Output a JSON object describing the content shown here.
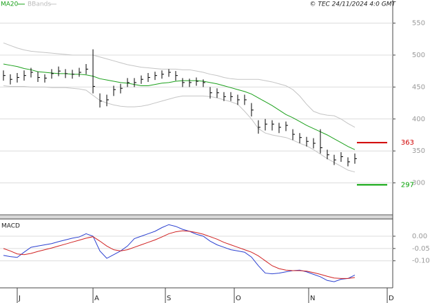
{
  "chart_data": [
    {
      "type": "ohlc",
      "copyright": "© TEC 24/11/2024 4:0 GMT",
      "bars": {
        "color": "#000000",
        "high": [
          476,
          470,
          472,
          476,
          480,
          474,
          470,
          478,
          482,
          478,
          477,
          480,
          486,
          509,
          440,
          438,
          452,
          455,
          464,
          464,
          468,
          472,
          474,
          476,
          478,
          475,
          464,
          463,
          465,
          462,
          450,
          448,
          442,
          442,
          438,
          438,
          425,
          398,
          400,
          398,
          394,
          396,
          384,
          378,
          372,
          370,
          384,
          352,
          344,
          348,
          340,
          346
        ],
        "low": [
          460,
          454,
          457,
          460,
          465,
          458,
          457,
          463,
          467,
          464,
          463,
          466,
          470,
          440,
          418,
          420,
          436,
          440,
          450,
          450,
          455,
          458,
          461,
          463,
          466,
          460,
          450,
          450,
          452,
          450,
          432,
          433,
          428,
          428,
          422,
          422,
          404,
          377,
          382,
          382,
          378,
          381,
          367,
          362,
          357,
          354,
          346,
          337,
          328,
          333,
          326,
          330
        ],
        "close": [
          468,
          462,
          465,
          468,
          473,
          465,
          464,
          471,
          475,
          471,
          470,
          473,
          478,
          451,
          428,
          430,
          446,
          448,
          457,
          457,
          462,
          465,
          468,
          470,
          473,
          468,
          457,
          457,
          459,
          457,
          441,
          441,
          435,
          435,
          430,
          430,
          414,
          387,
          392,
          392,
          387,
          390,
          376,
          371,
          365,
          362,
          355,
          344,
          336,
          341,
          333,
          338
        ]
      },
      "series": [
        {
          "name": "MA20",
          "color": "#1aa01a",
          "values": [
            486,
            484,
            482,
            479,
            477,
            474,
            473,
            472,
            471,
            471,
            470,
            470,
            469,
            467,
            463,
            461,
            459,
            457,
            456,
            454,
            452,
            452,
            454,
            456,
            457,
            459,
            460,
            460,
            460,
            459,
            457,
            455,
            452,
            449,
            446,
            443,
            439,
            433,
            427,
            421,
            414,
            407,
            402,
            396,
            390,
            385,
            380,
            375,
            369,
            363,
            357,
            352
          ]
        },
        {
          "name": "BBands",
          "color": "#c4c4c4",
          "upper": [
            519,
            515,
            511,
            508,
            506,
            505,
            504,
            503,
            502,
            501,
            500,
            500,
            500,
            500,
            497,
            494,
            491,
            488,
            485,
            483,
            481,
            480,
            479,
            478,
            478,
            478,
            477,
            477,
            475,
            473,
            470,
            468,
            465,
            463,
            462,
            462,
            462,
            462,
            460,
            458,
            455,
            452,
            446,
            436,
            423,
            412,
            408,
            406,
            405,
            400,
            393,
            387
          ],
          "lower": [
            452,
            451,
            451,
            451,
            450,
            450,
            450,
            449,
            449,
            449,
            448,
            447,
            445,
            437,
            429,
            425,
            422,
            420,
            419,
            419,
            420,
            422,
            425,
            428,
            431,
            434,
            436,
            436,
            436,
            436,
            435,
            433,
            430,
            427,
            423,
            412,
            400,
            385,
            378,
            375,
            373,
            371,
            367,
            362,
            358,
            352,
            345,
            338,
            332,
            326,
            320,
            317
          ]
        }
      ],
      "levels": [
        {
          "value": 363,
          "color": "#d00000"
        },
        {
          "value": 297,
          "color": "#00a000"
        }
      ],
      "xlim": [
        -0.5,
        56.5
      ],
      "ylim": [
        250,
        570
      ],
      "yticks": [
        300,
        350,
        400,
        450,
        500,
        550
      ],
      "grid": true
    },
    {
      "type": "line",
      "title": "MACD",
      "series": [
        {
          "color": "#2a3fd0",
          "values": [
            -0.078,
            -0.083,
            -0.086,
            -0.065,
            -0.045,
            -0.04,
            -0.035,
            -0.03,
            -0.022,
            -0.015,
            -0.008,
            -0.003,
            0.01,
            0.0,
            -0.06,
            -0.09,
            -0.075,
            -0.06,
            -0.04,
            -0.01,
            0.0,
            0.01,
            0.02,
            0.035,
            0.047,
            0.04,
            0.028,
            0.02,
            0.008,
            0.0,
            -0.02,
            -0.035,
            -0.045,
            -0.055,
            -0.06,
            -0.065,
            -0.085,
            -0.12,
            -0.15,
            -0.153,
            -0.15,
            -0.145,
            -0.14,
            -0.138,
            -0.145,
            -0.155,
            -0.165,
            -0.18,
            -0.185,
            -0.175,
            -0.172,
            -0.158
          ]
        },
        {
          "color": "#d02020",
          "values": [
            -0.05,
            -0.06,
            -0.072,
            -0.075,
            -0.07,
            -0.062,
            -0.055,
            -0.048,
            -0.04,
            -0.032,
            -0.024,
            -0.016,
            -0.008,
            -0.002,
            -0.02,
            -0.04,
            -0.055,
            -0.06,
            -0.055,
            -0.045,
            -0.035,
            -0.025,
            -0.015,
            -0.003,
            0.01,
            0.018,
            0.022,
            0.02,
            0.015,
            0.008,
            -0.002,
            -0.012,
            -0.025,
            -0.035,
            -0.045,
            -0.055,
            -0.065,
            -0.08,
            -0.1,
            -0.12,
            -0.132,
            -0.138,
            -0.14,
            -0.14,
            -0.142,
            -0.148,
            -0.155,
            -0.163,
            -0.17,
            -0.172,
            -0.172,
            -0.168
          ]
        }
      ],
      "xlim": [
        -0.5,
        56.5
      ],
      "xticks": [
        {
          "value": 2,
          "label": "J"
        },
        {
          "value": 13,
          "label": "A"
        },
        {
          "value": 23.5,
          "label": "S"
        },
        {
          "value": 33.5,
          "label": "O"
        },
        {
          "value": 44.3,
          "label": "N"
        },
        {
          "value": 55.7,
          "label": "D"
        }
      ],
      "ylim": [
        -0.21,
        0.07
      ],
      "yticks": [
        {
          "value": 0,
          "label": "0.00"
        },
        {
          "value": -0.05,
          "label": "-0.05"
        },
        {
          "value": -0.1,
          "label": "-0.10"
        }
      ],
      "grid": true
    }
  ]
}
